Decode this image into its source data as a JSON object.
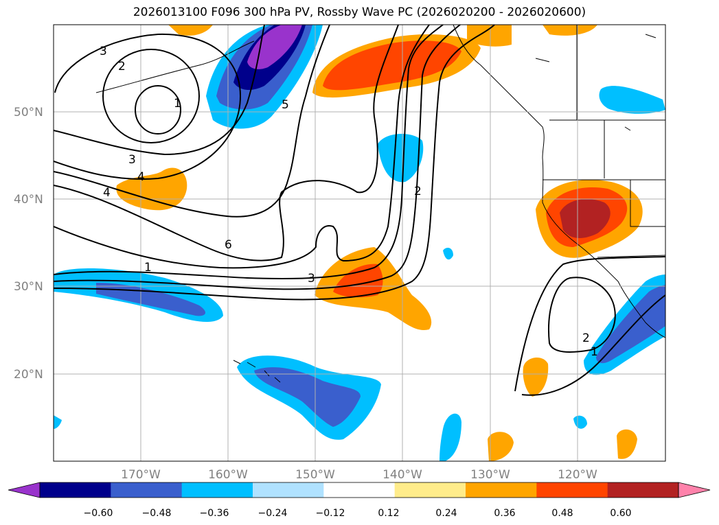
{
  "title": "2026013100 F096 300 hPa PV, Rossby Wave PC (2026020200 - 2026020600)",
  "longitude_labels": [
    "170°W",
    "160°W",
    "150°W",
    "140°W",
    "130°W",
    "120°W"
  ],
  "latitude_labels": [
    "50°N",
    "40°N",
    "30°N",
    "20°N"
  ],
  "colorbar": {
    "ticks": [
      "−0.60",
      "−0.48",
      "−0.36",
      "−0.24",
      "−0.12",
      "0.12",
      "0.24",
      "0.36",
      "0.48",
      "0.60"
    ],
    "colors": [
      "#9933cc",
      "#00008b",
      "#3a5fcd",
      "#00bfff",
      "#b0e2ff",
      "#ffffff",
      "#ffec8b",
      "#ffa500",
      "#ff4500",
      "#b22222",
      "#ff82ab"
    ]
  },
  "contour_labels": [
    "3",
    "2",
    "1",
    "5",
    "3",
    "4",
    "4",
    "2",
    "6",
    "1",
    "3",
    "2",
    "1"
  ]
}
